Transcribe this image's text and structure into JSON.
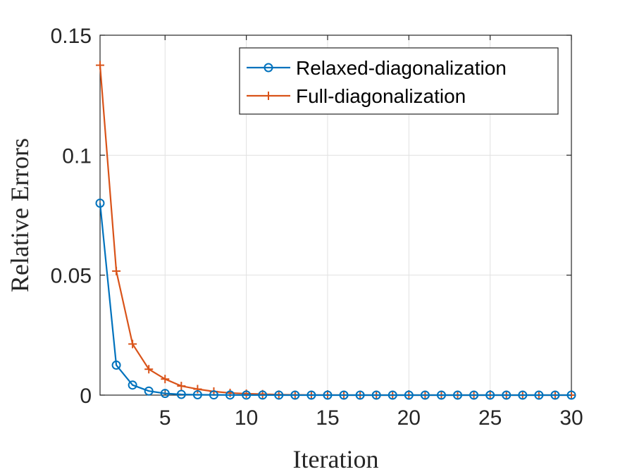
{
  "chart_data": {
    "type": "line",
    "title": "",
    "xlabel": "Iteration",
    "ylabel": "Relative Errors",
    "xlim": [
      1,
      30
    ],
    "ylim": [
      0,
      0.15
    ],
    "xticks": [
      5,
      10,
      15,
      20,
      25,
      30
    ],
    "xtick_labels": [
      "5",
      "10",
      "15",
      "20",
      "25",
      "30"
    ],
    "yticks": [
      0,
      0.05,
      0.1,
      0.15
    ],
    "ytick_labels": [
      "0",
      "0.05",
      "0.1",
      "0.15"
    ],
    "grid": true,
    "legend_position": "top-right",
    "x": [
      1,
      2,
      3,
      4,
      5,
      6,
      7,
      8,
      9,
      10,
      11,
      12,
      13,
      14,
      15,
      16,
      17,
      18,
      19,
      20,
      21,
      22,
      23,
      24,
      25,
      26,
      27,
      28,
      29,
      30
    ],
    "series": [
      {
        "name": "Relaxed-diagonalization",
        "color": "#0072BD",
        "marker": "circle",
        "values": [
          0.08,
          0.0125,
          0.0042,
          0.0017,
          0.0007,
          0.0003,
          0.00015,
          0.0001,
          5e-05,
          3e-05,
          2e-05,
          1e-05,
          0,
          0,
          0,
          0,
          0,
          0,
          0,
          0,
          0,
          0,
          0,
          0,
          0,
          0,
          0,
          0,
          0,
          0
        ]
      },
      {
        "name": "Full-diagonalization",
        "color": "#D95319",
        "marker": "plus",
        "values": [
          0.1375,
          0.0517,
          0.0213,
          0.0108,
          0.0067,
          0.0038,
          0.0025,
          0.0015,
          0.0009,
          0.0006,
          0.0004,
          0.0002,
          0.0001,
          5e-05,
          3e-05,
          2e-05,
          1e-05,
          0,
          0,
          0,
          0,
          0,
          0,
          0,
          0,
          0,
          0,
          0,
          0,
          0
        ]
      }
    ]
  }
}
